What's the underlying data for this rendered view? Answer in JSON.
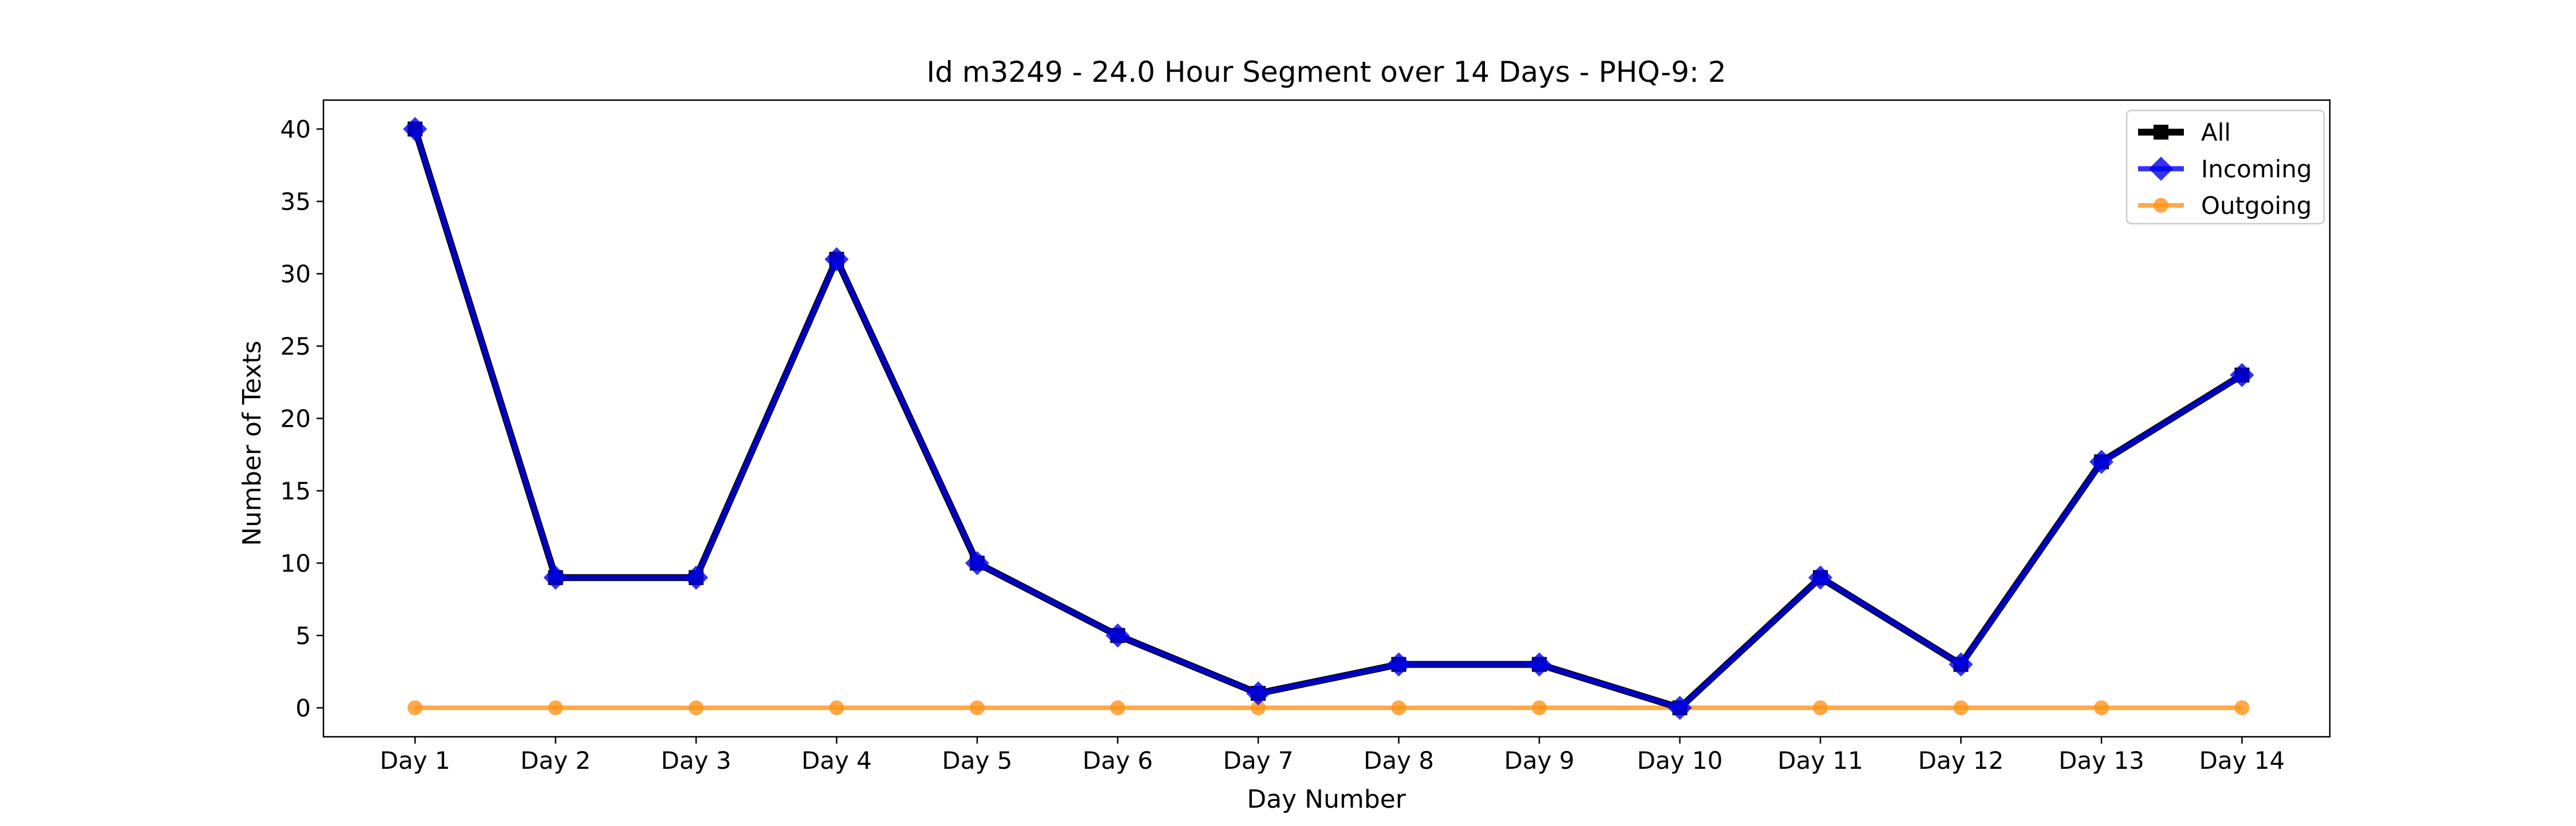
{
  "chart_data": {
    "type": "line",
    "title": "Id m3249 - 24.0 Hour Segment over 14 Days - PHQ-9: 2",
    "xlabel": "Day Number",
    "ylabel": "Number of Texts",
    "categories": [
      "Day 1",
      "Day 2",
      "Day 3",
      "Day 4",
      "Day 5",
      "Day 6",
      "Day 7",
      "Day 8",
      "Day 9",
      "Day 10",
      "Day 11",
      "Day 12",
      "Day 13",
      "Day 14"
    ],
    "ylim": [
      -2,
      42
    ],
    "yticks": [
      0,
      5,
      10,
      15,
      20,
      25,
      30,
      35,
      40
    ],
    "grid": false,
    "legend_position": "top-right",
    "series": [
      {
        "name": "All",
        "color": "#000000",
        "marker": "square",
        "values": [
          40,
          9,
          9,
          31,
          10,
          5,
          1,
          3,
          3,
          0,
          9,
          3,
          17,
          23
        ]
      },
      {
        "name": "Incoming",
        "color": "#0000ee",
        "marker": "diamond",
        "values": [
          40,
          9,
          9,
          31,
          10,
          5,
          1,
          3,
          3,
          0,
          9,
          3,
          17,
          23
        ]
      },
      {
        "name": "Outgoing",
        "color": "#ff9419",
        "marker": "circle",
        "values": [
          0,
          0,
          0,
          0,
          0,
          0,
          0,
          0,
          0,
          0,
          0,
          0,
          0,
          0
        ]
      }
    ]
  }
}
